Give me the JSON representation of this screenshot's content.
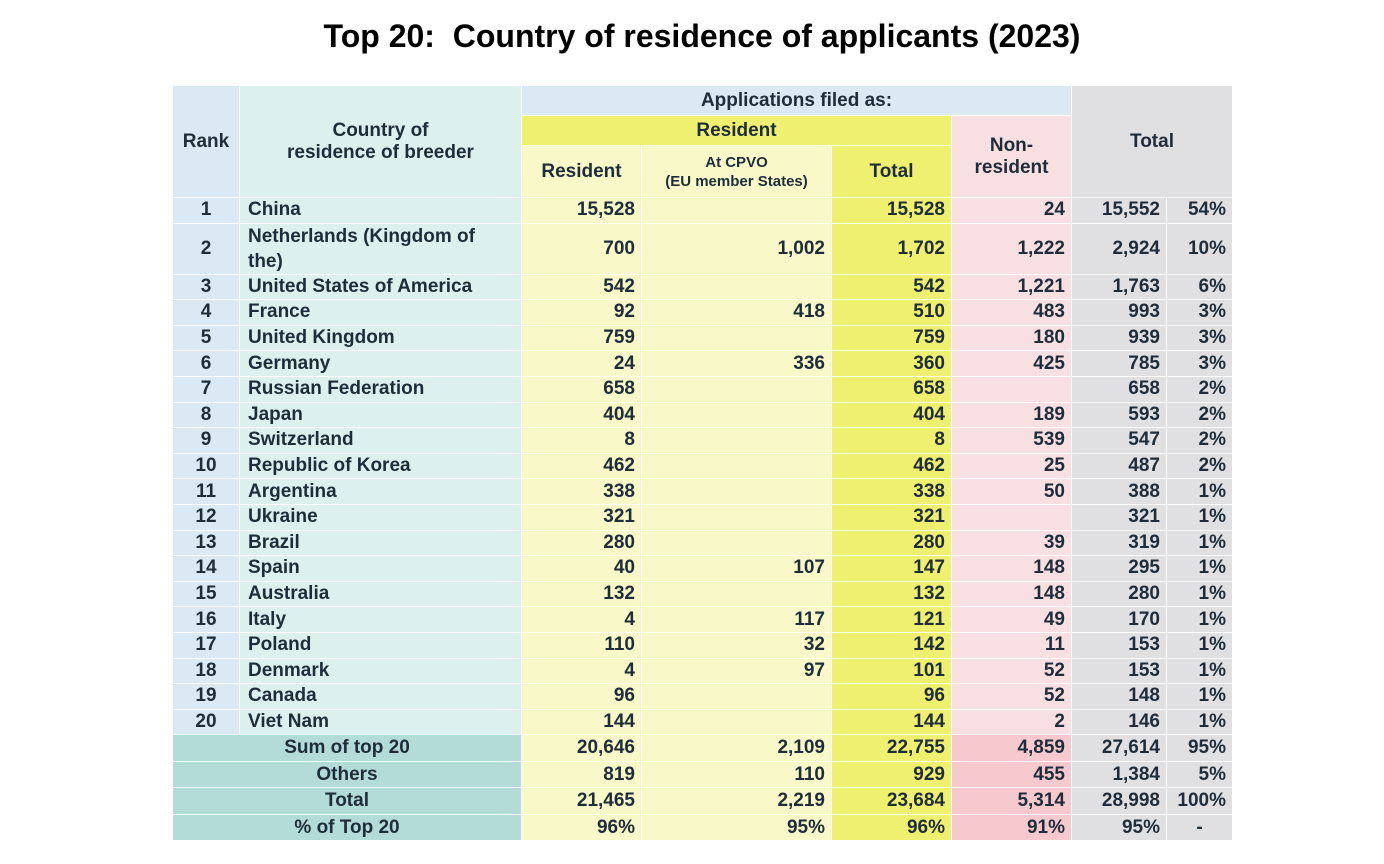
{
  "chart_data": {
    "type": "table",
    "title": "Top 20:  Country of residence of applicants (2023)",
    "header": {
      "rank": "Rank",
      "country": "Country of residence of breeder",
      "country_line1": "Country of",
      "country_line2": "residence of breeder",
      "applications_filed_as": "Applications filed as:",
      "resident_group": "Resident",
      "resident": "Resident",
      "at_cpvo_line1": "At CPVO",
      "at_cpvo_line2": "(EU member States)",
      "resident_total": "Total",
      "non_resident_line1": "Non-",
      "non_resident_line2": "resident",
      "total": "Total"
    },
    "rows": [
      {
        "rank": "1",
        "country": "China",
        "resident": "15,528",
        "cpvo": "",
        "resident_total": "15,528",
        "non_resident": "24",
        "total": "15,552",
        "share": "54%"
      },
      {
        "rank": "2",
        "country": "Netherlands (Kingdom of the)",
        "resident": "700",
        "cpvo": "1,002",
        "resident_total": "1,702",
        "non_resident": "1,222",
        "total": "2,924",
        "share": "10%"
      },
      {
        "rank": "3",
        "country": "United States of America",
        "resident": "542",
        "cpvo": "",
        "resident_total": "542",
        "non_resident": "1,221",
        "total": "1,763",
        "share": "6%"
      },
      {
        "rank": "4",
        "country": "France",
        "resident": "92",
        "cpvo": "418",
        "resident_total": "510",
        "non_resident": "483",
        "total": "993",
        "share": "3%"
      },
      {
        "rank": "5",
        "country": "United Kingdom",
        "resident": "759",
        "cpvo": "",
        "resident_total": "759",
        "non_resident": "180",
        "total": "939",
        "share": "3%"
      },
      {
        "rank": "6",
        "country": "Germany",
        "resident": "24",
        "cpvo": "336",
        "resident_total": "360",
        "non_resident": "425",
        "total": "785",
        "share": "3%"
      },
      {
        "rank": "7",
        "country": "Russian Federation",
        "resident": "658",
        "cpvo": "",
        "resident_total": "658",
        "non_resident": "",
        "total": "658",
        "share": "2%"
      },
      {
        "rank": "8",
        "country": "Japan",
        "resident": "404",
        "cpvo": "",
        "resident_total": "404",
        "non_resident": "189",
        "total": "593",
        "share": "2%"
      },
      {
        "rank": "9",
        "country": "Switzerland",
        "resident": "8",
        "cpvo": "",
        "resident_total": "8",
        "non_resident": "539",
        "total": "547",
        "share": "2%"
      },
      {
        "rank": "10",
        "country": "Republic of Korea",
        "resident": "462",
        "cpvo": "",
        "resident_total": "462",
        "non_resident": "25",
        "total": "487",
        "share": "2%"
      },
      {
        "rank": "11",
        "country": "Argentina",
        "resident": "338",
        "cpvo": "",
        "resident_total": "338",
        "non_resident": "50",
        "total": "388",
        "share": "1%"
      },
      {
        "rank": "12",
        "country": "Ukraine",
        "resident": "321",
        "cpvo": "",
        "resident_total": "321",
        "non_resident": "",
        "total": "321",
        "share": "1%"
      },
      {
        "rank": "13",
        "country": "Brazil",
        "resident": "280",
        "cpvo": "",
        "resident_total": "280",
        "non_resident": "39",
        "total": "319",
        "share": "1%"
      },
      {
        "rank": "14",
        "country": "Spain",
        "resident": "40",
        "cpvo": "107",
        "resident_total": "147",
        "non_resident": "148",
        "total": "295",
        "share": "1%"
      },
      {
        "rank": "15",
        "country": "Australia",
        "resident": "132",
        "cpvo": "",
        "resident_total": "132",
        "non_resident": "148",
        "total": "280",
        "share": "1%"
      },
      {
        "rank": "16",
        "country": "Italy",
        "resident": "4",
        "cpvo": "117",
        "resident_total": "121",
        "non_resident": "49",
        "total": "170",
        "share": "1%"
      },
      {
        "rank": "17",
        "country": "Poland",
        "resident": "110",
        "cpvo": "32",
        "resident_total": "142",
        "non_resident": "11",
        "total": "153",
        "share": "1%"
      },
      {
        "rank": "18",
        "country": "Denmark",
        "resident": "4",
        "cpvo": "97",
        "resident_total": "101",
        "non_resident": "52",
        "total": "153",
        "share": "1%"
      },
      {
        "rank": "19",
        "country": "Canada",
        "resident": "96",
        "cpvo": "",
        "resident_total": "96",
        "non_resident": "52",
        "total": "148",
        "share": "1%"
      },
      {
        "rank": "20",
        "country": "Viet Nam",
        "resident": "144",
        "cpvo": "",
        "resident_total": "144",
        "non_resident": "2",
        "total": "146",
        "share": "1%"
      }
    ],
    "summary": [
      {
        "label": "Sum of top 20",
        "resident": "20,646",
        "cpvo": "2,109",
        "resident_total": "22,755",
        "non_resident": "4,859",
        "total": "27,614",
        "share": "95%"
      },
      {
        "label": "Others",
        "resident": "819",
        "cpvo": "110",
        "resident_total": "929",
        "non_resident": "455",
        "total": "1,384",
        "share": "5%"
      },
      {
        "label": "Total",
        "resident": "21,465",
        "cpvo": "2,219",
        "resident_total": "23,684",
        "non_resident": "5,314",
        "total": "28,998",
        "share": "100%"
      },
      {
        "label": "% of Top 20",
        "resident": "96%",
        "cpvo": "95%",
        "resident_total": "96%",
        "non_resident": "91%",
        "total": "95%",
        "share": "-"
      }
    ],
    "colors": {
      "rank": "#dbe9f4",
      "country": "#dcf0ee",
      "resident": "#f8f8c8",
      "resident_total": "#f0f070",
      "non_resident": "#f8e0e2",
      "total": "#e0e0e2",
      "summary_label": "#b3dcd8",
      "summary_non_resident": "#f5c9ce"
    }
  }
}
